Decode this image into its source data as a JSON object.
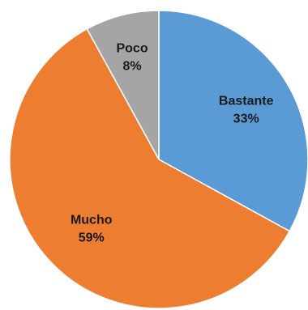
{
  "chart_data": {
    "type": "pie",
    "title": "",
    "categories": [
      "Bastante",
      "Mucho",
      "Poco"
    ],
    "values": [
      33,
      59,
      8
    ],
    "percent_labels": [
      "33%",
      "59%",
      "8%"
    ],
    "colors": [
      "#5B9BD5",
      "#ED7D31",
      "#A5A5A5"
    ],
    "legend": "none",
    "start_angle_deg": 0,
    "direction": "clockwise"
  }
}
